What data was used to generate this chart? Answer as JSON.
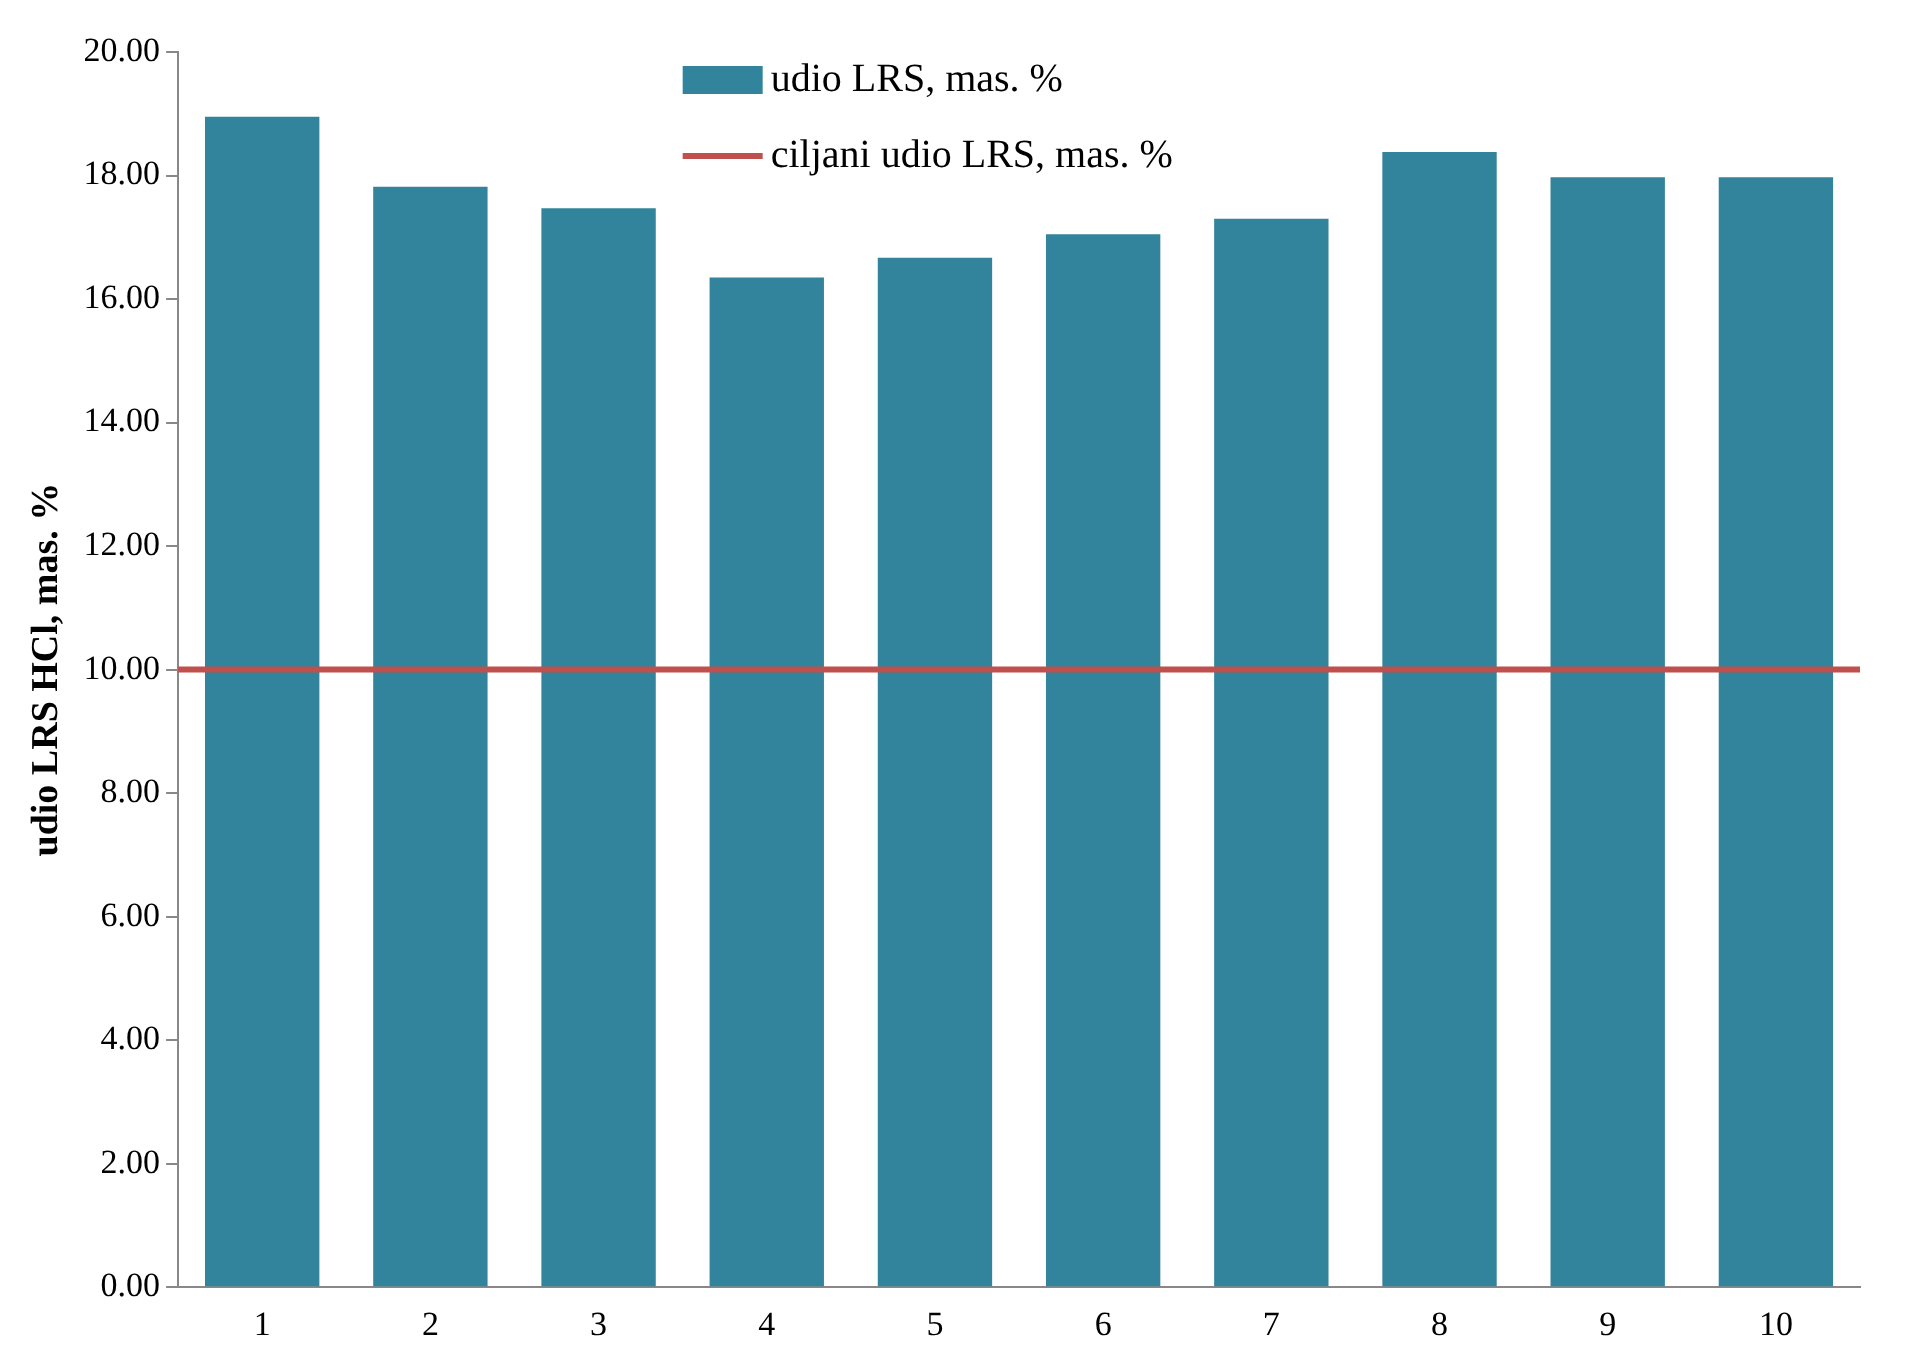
{
  "chart_data": {
    "type": "bar",
    "ylabel": "udio LRS HCl, mas. %",
    "categories": [
      "1",
      "2",
      "3",
      "4",
      "5",
      "6",
      "7",
      "8",
      "9",
      "10"
    ],
    "series": [
      {
        "name": "udio LRS, mas. %",
        "color": "#31849b",
        "values": [
          18.95,
          17.82,
          17.47,
          16.35,
          16.67,
          17.05,
          17.3,
          18.38,
          17.97,
          17.97
        ]
      }
    ],
    "ylim": [
      0,
      20
    ],
    "yticks": [
      {
        "value": 0,
        "label": "0.00"
      },
      {
        "value": 2,
        "label": "2.00"
      },
      {
        "value": 4,
        "label": "4.00"
      },
      {
        "value": 6,
        "label": "6.00"
      },
      {
        "value": 8,
        "label": "8.00"
      },
      {
        "value": 10,
        "label": "10.00"
      },
      {
        "value": 12,
        "label": "12.00"
      },
      {
        "value": 14,
        "label": "14.00"
      },
      {
        "value": 16,
        "label": "16.00"
      },
      {
        "value": 18,
        "label": "18.00"
      },
      {
        "value": 20,
        "label": "20.00"
      }
    ],
    "ref_lines": [
      {
        "axis": "y",
        "value": 10,
        "label": "ciljani udio LRS, mas. %",
        "color": "#c0504d"
      }
    ],
    "grid": false,
    "legend": "top"
  }
}
